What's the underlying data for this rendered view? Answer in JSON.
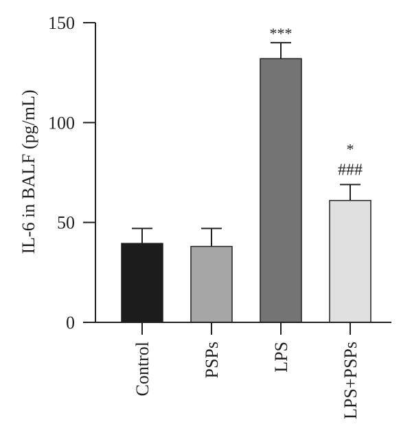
{
  "chart_data": {
    "type": "bar",
    "ylabel": "IL-6 in BALF (pg/mL)",
    "xlabel": "",
    "ylim": [
      0,
      150
    ],
    "yticks": [
      "0",
      "50",
      "100",
      "150"
    ],
    "ytick_values": [
      0,
      50,
      100,
      150
    ],
    "grid": false,
    "categories": [
      "Control",
      "PSPs",
      "LPS",
      "LPS+PSPs"
    ],
    "values": [
      39.5,
      38,
      132,
      61
    ],
    "errors": [
      7.5,
      9,
      8,
      8
    ],
    "colors": [
      "#1c1c1c",
      "#a6a6a6",
      "#747474",
      "#e0e0e0"
    ],
    "annotations": [
      {
        "category": "LPS",
        "lines": [
          "***"
        ]
      },
      {
        "category": "LPS+PSPs",
        "lines": [
          "*",
          "###"
        ]
      }
    ]
  }
}
